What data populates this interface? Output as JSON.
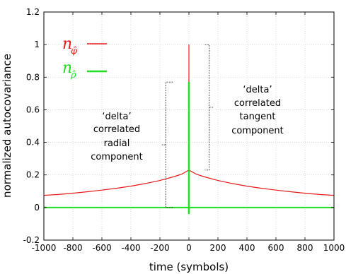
{
  "chart_data": {
    "type": "line",
    "title": "",
    "xlabel": "time (symbols)",
    "ylabel": "normalized autocovariance",
    "xlim": [
      -1000,
      1000
    ],
    "ylim": [
      -0.2,
      1.2
    ],
    "xticks": [
      -1000,
      -800,
      -600,
      -400,
      -200,
      0,
      200,
      400,
      600,
      800,
      1000
    ],
    "yticks": [
      -0.2,
      0,
      0.2,
      0.4,
      0.6,
      0.8,
      1,
      1.2
    ],
    "xtick_labels": [
      "-1000",
      "-800",
      "-600",
      "-400",
      "-200",
      "0",
      "200",
      "400",
      "600",
      "800",
      "1000"
    ],
    "ytick_labels": [
      "-0.2",
      "0",
      "0.2",
      "0.4",
      "0.6",
      "0.8",
      "1",
      "1.2"
    ],
    "grid": true,
    "legend_position": "top-left",
    "series": [
      {
        "name_symbol": "n",
        "name_subscript": "φ̂",
        "color": "#e8191a",
        "baseline_points": {
          "x": [
            -1000,
            -900,
            -800,
            -700,
            -600,
            -500,
            -400,
            -300,
            -200,
            -100,
            -50,
            0,
            50,
            100,
            200,
            300,
            400,
            500,
            600,
            700,
            800,
            900,
            1000
          ],
          "y": [
            0.075,
            0.08,
            0.088,
            0.097,
            0.107,
            0.118,
            0.131,
            0.147,
            0.166,
            0.19,
            0.205,
            0.23,
            0.205,
            0.19,
            0.166,
            0.147,
            0.131,
            0.118,
            0.107,
            0.097,
            0.088,
            0.08,
            0.075
          ]
        },
        "peak": {
          "x": 0,
          "y": 1.0
        }
      },
      {
        "name_symbol": "n",
        "name_subscript": "ρ̂",
        "color": "#22dd22",
        "baseline_value": 0.0,
        "x_range": [
          -1000,
          1000
        ],
        "peak": {
          "x": 0,
          "y": 0.77
        },
        "dip": {
          "x": 0,
          "y": -0.04
        }
      }
    ],
    "annotations": [
      {
        "lines": [
          "‘delta’",
          "correlated",
          "radial",
          "component"
        ],
        "y_span": [
          0.0,
          0.77
        ],
        "side": "left"
      },
      {
        "lines": [
          "‘delta’",
          "correlated",
          "tangent",
          "component"
        ],
        "y_span": [
          0.23,
          1.0
        ],
        "side": "right"
      }
    ]
  }
}
